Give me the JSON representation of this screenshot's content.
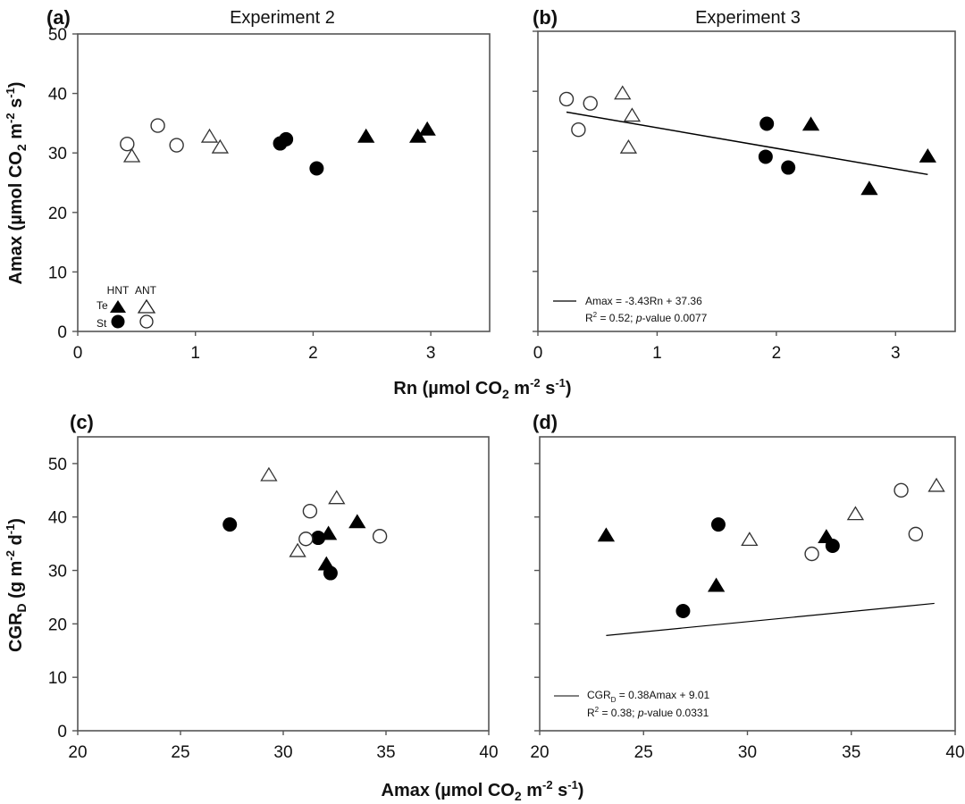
{
  "chart_data": [
    {
      "id": "a",
      "type": "scatter",
      "panel_label": "(a)",
      "title": "Experiment 2",
      "xlabel": "Rn (µmol CO2 m-2 s-1)",
      "ylabel": "Amax (µmol CO2 m-2 s-1)",
      "xlim": [
        0,
        3.5
      ],
      "ylim": [
        0,
        50
      ],
      "xticks": [
        0,
        1,
        2,
        3
      ],
      "yticks": [
        0,
        10,
        20,
        30,
        40,
        50
      ],
      "grid": false,
      "legend": {
        "placement": "bottom-left",
        "column_headers": [
          "HNT",
          "ANT"
        ],
        "row_labels": [
          "Te",
          "St"
        ]
      },
      "series": [
        {
          "name": "Te HNT",
          "marker": "triangle-filled",
          "points": [
            [
              2.45,
              32.8
            ],
            [
              2.89,
              32.8
            ],
            [
              2.97,
              34.0
            ]
          ]
        },
        {
          "name": "Te ANT",
          "marker": "triangle-open",
          "points": [
            [
              0.46,
              29.5
            ],
            [
              1.12,
              32.8
            ],
            [
              1.21,
              31.0
            ]
          ]
        },
        {
          "name": "St HNT",
          "marker": "circle-filled",
          "points": [
            [
              1.72,
              31.6
            ],
            [
              1.77,
              32.3
            ],
            [
              2.03,
              27.4
            ]
          ]
        },
        {
          "name": "St ANT",
          "marker": "circle-open",
          "points": [
            [
              0.42,
              31.5
            ],
            [
              0.68,
              34.6
            ],
            [
              0.84,
              31.3
            ]
          ]
        }
      ]
    },
    {
      "id": "b",
      "type": "scatter",
      "panel_label": "(b)",
      "title": "Experiment 3",
      "xlabel": "Rn (µmol CO2 m-2 s-1)",
      "ylabel": "Amax (µmol CO2 m-2 s-1)",
      "xlim": [
        0,
        3.5
      ],
      "ylim": [
        0,
        50
      ],
      "xticks": [
        0,
        1,
        2,
        3
      ],
      "yticks": [
        0,
        10,
        20,
        30,
        40,
        50
      ],
      "grid": false,
      "series": [
        {
          "name": "Te HNT",
          "marker": "triangle-filled",
          "points": [
            [
              2.29,
              34.5
            ],
            [
              2.78,
              23.8
            ],
            [
              3.27,
              29.2
            ]
          ]
        },
        {
          "name": "Te ANT",
          "marker": "triangle-open",
          "points": [
            [
              0.71,
              39.7
            ],
            [
              0.79,
              36.0
            ],
            [
              0.76,
              30.7
            ]
          ]
        },
        {
          "name": "St HNT",
          "marker": "circle-filled",
          "points": [
            [
              1.92,
              34.6
            ],
            [
              1.91,
              29.1
            ],
            [
              2.1,
              27.3
            ]
          ]
        },
        {
          "name": "St ANT",
          "marker": "circle-open",
          "points": [
            [
              0.24,
              38.7
            ],
            [
              0.44,
              38.0
            ],
            [
              0.34,
              33.6
            ]
          ]
        }
      ],
      "regression": {
        "slope": -3.43,
        "intercept": 37.36,
        "x_range": [
          0.24,
          3.27
        ],
        "equation": "Amax = -3.43Rn + 37.36",
        "stats_r2": "R",
        "stats_r2_sup": "2",
        "stats_rest": " = 0.52; ",
        "stats_p_italic": "p",
        "stats_p": "-value 0.0077"
      }
    },
    {
      "id": "c",
      "type": "scatter",
      "panel_label": "(c)",
      "title": "",
      "xlabel": "Amax (µmol CO2 m-2 s-1)",
      "ylabel": "CGRD (g m-2 d-1)",
      "xlim": [
        20,
        40
      ],
      "ylim": [
        0,
        55
      ],
      "xticks": [
        20,
        25,
        30,
        35,
        40
      ],
      "yticks": [
        0,
        10,
        20,
        30,
        40,
        50
      ],
      "grid": false,
      "series": [
        {
          "name": "Te HNT",
          "marker": "triangle-filled",
          "points": [
            [
              33.6,
              39.1
            ],
            [
              32.2,
              36.9
            ],
            [
              32.1,
              31.2
            ]
          ]
        },
        {
          "name": "Te ANT",
          "marker": "triangle-open",
          "points": [
            [
              29.3,
              47.9
            ],
            [
              32.6,
              43.6
            ],
            [
              30.7,
              33.7
            ]
          ]
        },
        {
          "name": "St HNT",
          "marker": "circle-filled",
          "points": [
            [
              27.4,
              38.6
            ],
            [
              31.7,
              36.1
            ],
            [
              32.3,
              29.5
            ]
          ]
        },
        {
          "name": "St ANT",
          "marker": "circle-open",
          "points": [
            [
              31.3,
              41.1
            ],
            [
              31.1,
              35.9
            ],
            [
              34.7,
              36.4
            ]
          ]
        }
      ]
    },
    {
      "id": "d",
      "type": "scatter",
      "panel_label": "(d)",
      "title": "",
      "xlabel": "Amax (µmol CO2 m-2 s-1)",
      "ylabel": "CGRD (g m-2 d-1)",
      "xlim": [
        20,
        40
      ],
      "ylim": [
        0,
        55
      ],
      "xticks": [
        20,
        25,
        30,
        35,
        40
      ],
      "yticks": [
        0,
        10,
        20,
        30,
        40,
        50
      ],
      "grid": false,
      "series": [
        {
          "name": "Te HNT",
          "marker": "triangle-filled",
          "points": [
            [
              23.2,
              36.6
            ],
            [
              33.8,
              36.3
            ],
            [
              28.5,
              27.2
            ]
          ]
        },
        {
          "name": "Te ANT",
          "marker": "triangle-open",
          "points": [
            [
              30.1,
              35.8
            ],
            [
              35.2,
              40.6
            ],
            [
              39.1,
              45.9
            ]
          ]
        },
        {
          "name": "St HNT",
          "marker": "circle-filled",
          "points": [
            [
              28.6,
              38.6
            ],
            [
              34.1,
              34.6
            ],
            [
              26.9,
              22.4
            ]
          ]
        },
        {
          "name": "St ANT",
          "marker": "circle-open",
          "points": [
            [
              37.4,
              45.0
            ],
            [
              38.1,
              36.8
            ],
            [
              33.1,
              33.1
            ]
          ]
        }
      ],
      "regression": {
        "slope": 0.38,
        "intercept": 9.01,
        "x_range": [
          23.2,
          39.0
        ],
        "equation_prefix": "CGR",
        "equation_sub": "D",
        "equation_rest": " = 0.38Amax + 9.01",
        "stats_r2": "R",
        "stats_r2_sup": "2",
        "stats_rest": " = 0.38; ",
        "stats_p_italic": "p",
        "stats_p": "-value 0.0331"
      }
    }
  ],
  "axis_titles": {
    "top_x": {
      "main": "Rn (µmol CO",
      "sub": "2",
      "mid": " m",
      "sup1": "-2",
      "mid2": " s",
      "sup2": "-1",
      "end": ")"
    },
    "bottom_x": {
      "main": "Amax (µmol CO",
      "sub": "2",
      "mid": " m",
      "sup1": "-2",
      "mid2": " s",
      "sup2": "-1",
      "end": ")"
    },
    "top_y": {
      "main": "Amax (µmol CO",
      "sub": "2",
      "mid": " m",
      "sup1": "-2",
      "mid2": " s",
      "sup2": "-1",
      "end": ")"
    },
    "bottom_y": {
      "main": "CGR",
      "sub": "D",
      "mid": " (g m",
      "sup1": "-2",
      "mid2": " d",
      "sup2": "-1",
      "end": ")"
    }
  },
  "legend": {
    "hnt": "HNT",
    "ant": "ANT",
    "te": "Te",
    "st": "St"
  }
}
